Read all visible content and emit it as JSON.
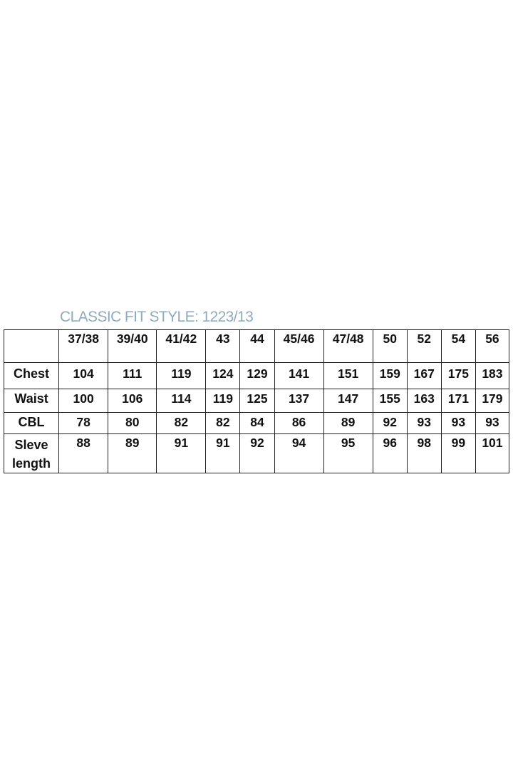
{
  "title": "CLASSIC FIT STYLE: 1223/13",
  "table": {
    "corner": "",
    "sizes": [
      "37/38",
      "39/40",
      "41/42",
      "43",
      "44",
      "45/46",
      "47/48",
      "50",
      "52",
      "54",
      "56"
    ],
    "rows": [
      {
        "label": "Chest",
        "values": [
          "104",
          "111",
          "119",
          "124",
          "129",
          "141",
          "151",
          "159",
          "167",
          "175",
          "183"
        ]
      },
      {
        "label": "Waist",
        "values": [
          "100",
          "106",
          "114",
          "119",
          "125",
          "137",
          "147",
          "155",
          "163",
          "171",
          "179"
        ]
      },
      {
        "label": "CBL",
        "values": [
          "78",
          "80",
          "82",
          "82",
          "84",
          "86",
          "89",
          "92",
          "93",
          "93",
          "93"
        ]
      },
      {
        "label": "Sleve length",
        "values": [
          "88",
          "89",
          "91",
          "91",
          "92",
          "94",
          "95",
          "96",
          "98",
          "99",
          "101"
        ]
      }
    ]
  }
}
